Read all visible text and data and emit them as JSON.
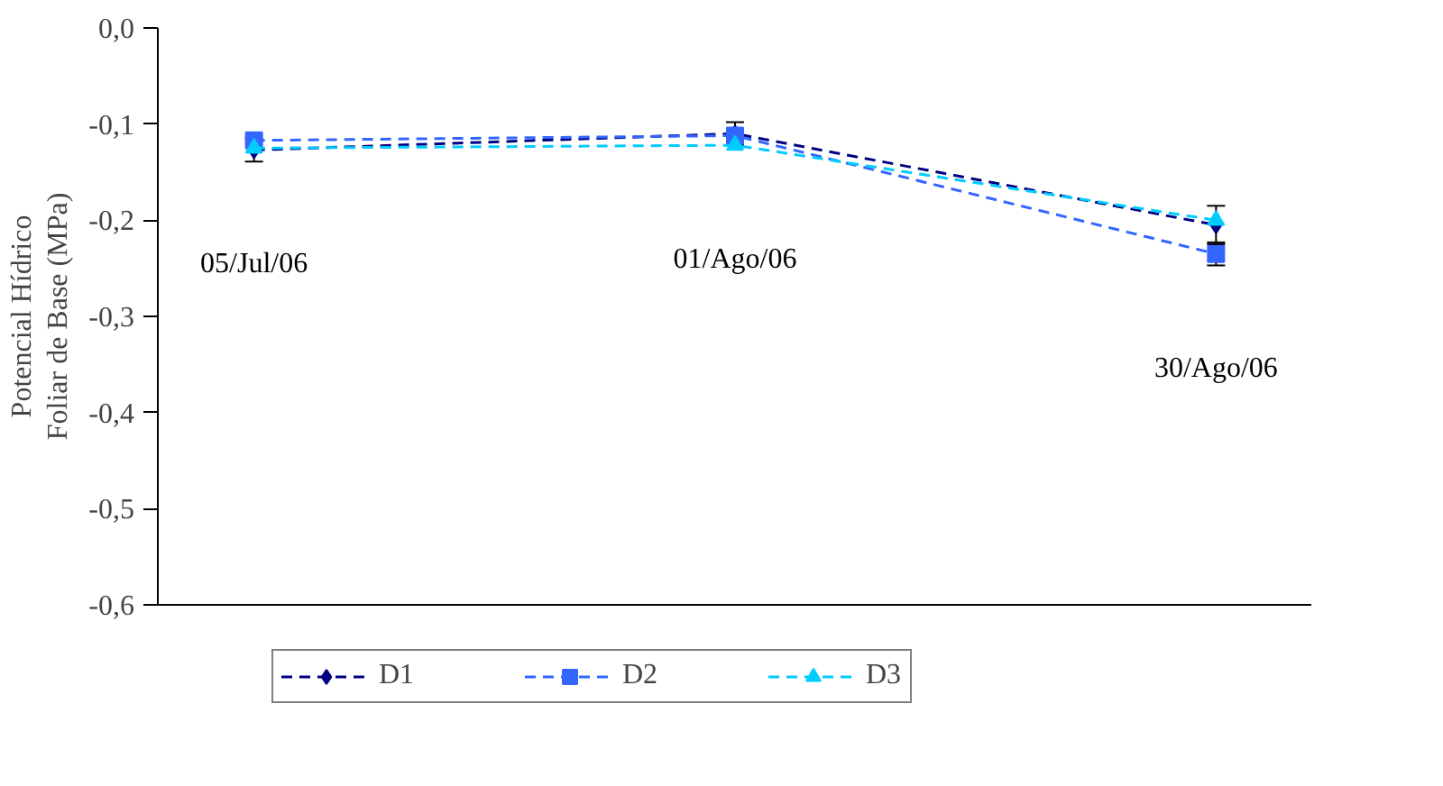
{
  "chart_data": {
    "type": "line",
    "ylabel": "Potencial Hídrico\nFoliar de Base (MPa)",
    "categories": [
      "05/Jul/06",
      "01/Ago/06",
      "30/Ago/06"
    ],
    "series": [
      {
        "name": "D1",
        "color": "#000080",
        "marker": "diamond",
        "values": [
          -0.127,
          -0.11,
          -0.205
        ],
        "errors": [
          0.012,
          0.012,
          0.02
        ]
      },
      {
        "name": "D2",
        "color": "#3366ff",
        "marker": "square",
        "values": [
          -0.117,
          -0.112,
          -0.235
        ],
        "errors": [
          null,
          null,
          0.012
        ]
      },
      {
        "name": "D3",
        "color": "#00ccff",
        "marker": "triangle",
        "values": [
          -0.125,
          -0.122,
          -0.2
        ]
      }
    ],
    "ylim": [
      -0.6,
      0
    ],
    "yticks": [
      {
        "value": 0,
        "label": "0,0"
      },
      {
        "value": -0.1,
        "label": "-0,1"
      },
      {
        "value": -0.2,
        "label": "-0,2"
      },
      {
        "value": -0.3,
        "label": "-0,3"
      },
      {
        "value": -0.4,
        "label": "-0,4"
      },
      {
        "value": -0.5,
        "label": "-0,5"
      },
      {
        "value": -0.6,
        "label": "-0,6"
      }
    ],
    "tick_labels": "y",
    "grid": false,
    "legend": "bottom",
    "line_style": "dashed"
  }
}
